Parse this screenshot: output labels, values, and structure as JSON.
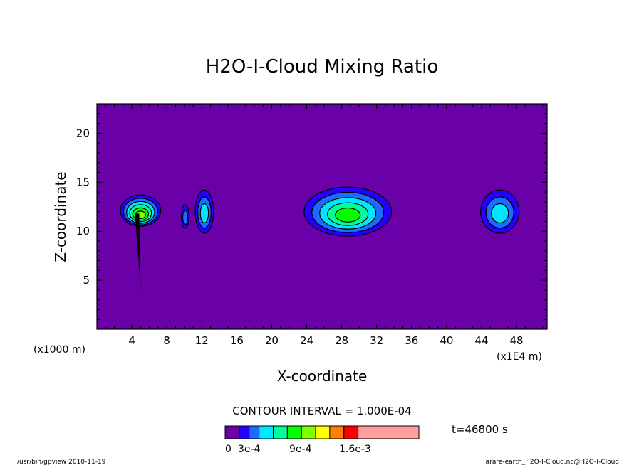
{
  "chart_data": {
    "type": "heatmap",
    "title": "H2O-I-Cloud Mixing Ratio",
    "xlabel": "X-coordinate",
    "ylabel": "Z-coordinate",
    "x_unit": "(x1E4 m)",
    "y_unit": "(x1000 m)",
    "xlim": [
      0,
      51.5
    ],
    "ylim": [
      0,
      23
    ],
    "x_ticks": [
      4,
      8,
      12,
      16,
      20,
      24,
      28,
      32,
      36,
      40,
      44,
      48
    ],
    "y_ticks": [
      5,
      10,
      15,
      20
    ],
    "contour_interval_text": "CONTOUR INTERVAL = 1.000E-04",
    "time_text": "t=46800 s",
    "levels": [
      0,
      0.0001,
      0.0002,
      0.0003,
      0.0004,
      0.0005,
      0.0006,
      0.0007,
      0.0008,
      0.0009,
      0.001,
      0.0011,
      0.0012,
      0.0013,
      0.0014,
      0.0015,
      0.0016
    ],
    "colors": [
      "#6a00a8",
      "#2600ff",
      "#1e6bff",
      "#00e6ff",
      "#00ff9c",
      "#00ff00",
      "#7fff00",
      "#ffff00",
      "#ff8000",
      "#ff0000",
      "#ff9e9e"
    ],
    "colorbar_labels": [
      {
        "text": "0",
        "value": 0
      },
      {
        "text": "3e-4",
        "value": 0.0003
      },
      {
        "text": "9e-4",
        "value": 0.0009
      },
      {
        "text": "1.6e-3",
        "value": 0.0016
      }
    ],
    "cloud_cells": [
      {
        "x": 5.0,
        "z": 12.1,
        "width": 4.6,
        "height": 3.2,
        "max": 0.0006
      },
      {
        "x": 10.1,
        "z": 11.5,
        "width": 0.9,
        "height": 2.4,
        "max": 0.0002
      },
      {
        "x": 12.3,
        "z": 12.0,
        "width": 2.1,
        "height": 4.4,
        "max": 0.0003
      },
      {
        "x": 28.7,
        "z": 12.0,
        "width": 10.0,
        "height": 5.0,
        "max": 0.0005
      },
      {
        "x": 46.1,
        "z": 12.0,
        "width": 4.4,
        "height": 4.4,
        "max": 0.0003
      }
    ]
  },
  "footer": {
    "left": "/usr/bin/gpview   2010-11-19",
    "right": "arare-earth_H2O-I-Cloud.nc@H2O-I-Cloud"
  }
}
